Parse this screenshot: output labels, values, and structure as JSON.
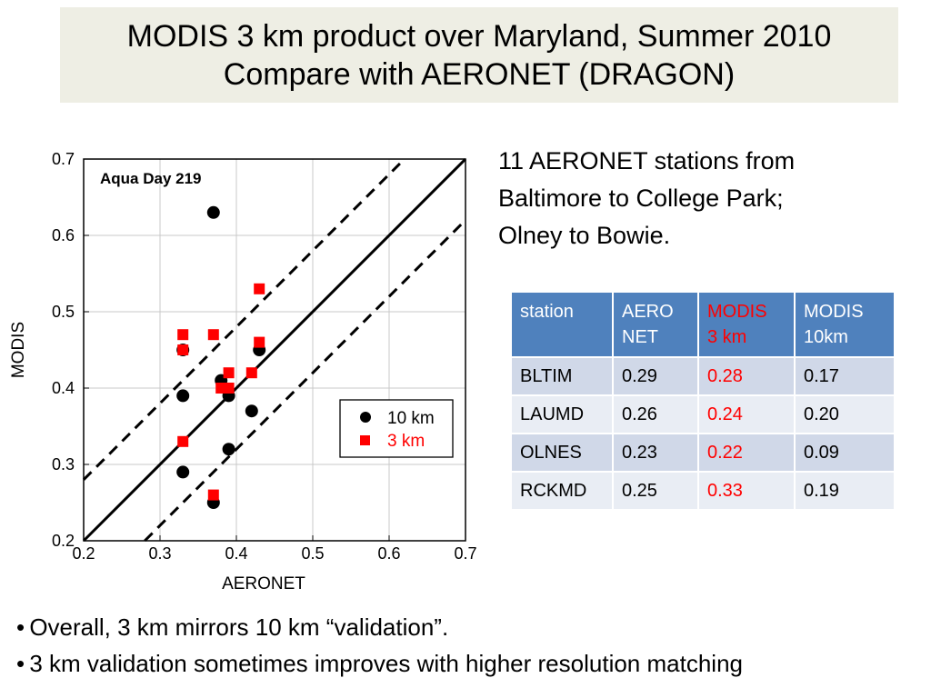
{
  "title": {
    "line1": "MODIS 3 km product over Maryland, Summer 2010",
    "line2": "Compare with AERONET (DRAGON)"
  },
  "side_text": {
    "line1": "11 AERONET stations from",
    "line2": "Baltimore to College Park;",
    "line3": "Olney to Bowie."
  },
  "table": {
    "headers": [
      {
        "l1": "station",
        "l2": ""
      },
      {
        "l1": "AERO",
        "l2": "NET"
      },
      {
        "l1": "MODIS",
        "l2": "3 km"
      },
      {
        "l1": "MODIS",
        "l2": "10km"
      }
    ],
    "rows": [
      [
        "BLTIM",
        "0.29",
        "0.28",
        "0.17"
      ],
      [
        "LAUMD",
        "0.26",
        "0.24",
        "0.20"
      ],
      [
        "OLNES",
        "0.23",
        "0.22",
        "0.09"
      ],
      [
        "RCKMD",
        "0.25",
        "0.33",
        "0.19"
      ]
    ]
  },
  "bullets": [
    "Overall, 3 km mirrors 10 km “validation”.",
    "3 km validation sometimes improves with higher resolution matching"
  ],
  "chart_data": {
    "type": "scatter",
    "annotation": "Aqua Day 219",
    "xlabel": "AERONET",
    "ylabel": "MODIS",
    "xlim": [
      0.2,
      0.7
    ],
    "ylim": [
      0.2,
      0.7
    ],
    "xticks": [
      "0.2",
      "0.3",
      "0.4",
      "0.5",
      "0.6",
      "0.7"
    ],
    "yticks": [
      "0.2",
      "0.3",
      "0.4",
      "0.5",
      "0.6",
      "0.7"
    ],
    "grid": true,
    "legend_position": "right-middle",
    "reference_lines": [
      {
        "name": "one-to-one",
        "style": "solid",
        "offset": 0.0
      },
      {
        "name": "upper-envelope",
        "style": "dashed",
        "offset": 0.08
      },
      {
        "name": "lower-envelope",
        "style": "dashed",
        "offset": -0.08
      }
    ],
    "series": [
      {
        "name": "10 km",
        "marker": "circle",
        "color": "#000000",
        "points": [
          [
            0.37,
            0.63
          ],
          [
            0.33,
            0.45
          ],
          [
            0.43,
            0.45
          ],
          [
            0.38,
            0.41
          ],
          [
            0.39,
            0.39
          ],
          [
            0.33,
            0.39
          ],
          [
            0.42,
            0.37
          ],
          [
            0.39,
            0.32
          ],
          [
            0.33,
            0.29
          ],
          [
            0.37,
            0.25
          ]
        ]
      },
      {
        "name": "3 km",
        "marker": "square",
        "color": "#ff0000",
        "points": [
          [
            0.43,
            0.53
          ],
          [
            0.33,
            0.47
          ],
          [
            0.37,
            0.47
          ],
          [
            0.43,
            0.46
          ],
          [
            0.33,
            0.45
          ],
          [
            0.39,
            0.42
          ],
          [
            0.42,
            0.42
          ],
          [
            0.38,
            0.4
          ],
          [
            0.39,
            0.4
          ],
          [
            0.33,
            0.33
          ],
          [
            0.37,
            0.26
          ]
        ]
      }
    ]
  }
}
